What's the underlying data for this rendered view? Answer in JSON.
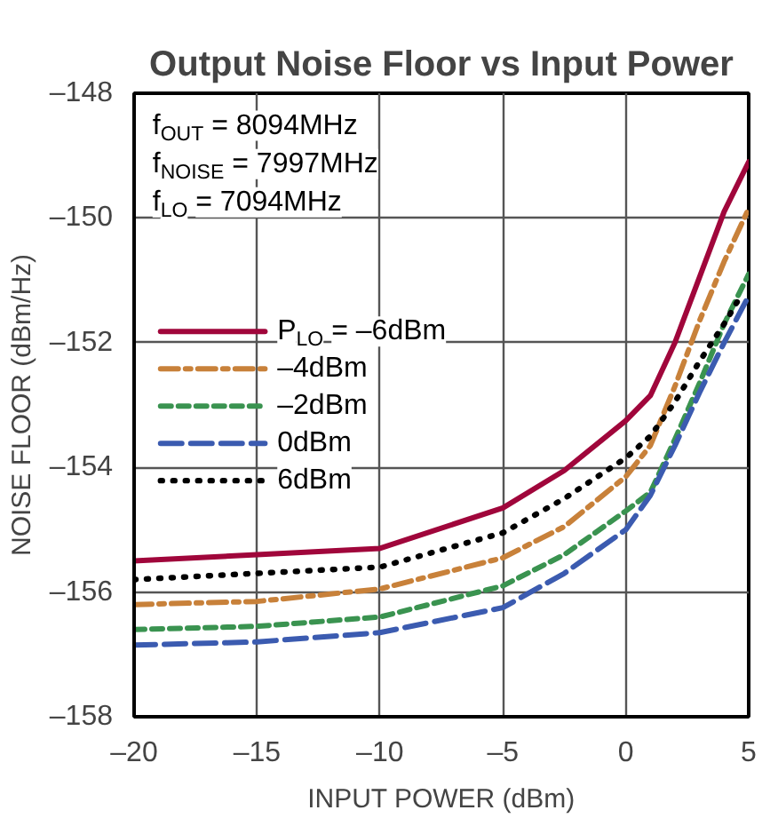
{
  "chart_data": {
    "type": "line",
    "title": "Output Noise Floor vs Input Power",
    "xlabel": "INPUT POWER (dBm)",
    "ylabel": "NOISE FLOOR (dBm/Hz)",
    "annotations": [
      "f$_{OUT}$ = 8094MHz",
      "f$_{NOISE}$ = 7997MHz",
      "f$_{LO}$ = 7094MHz"
    ],
    "x": [
      -20,
      -15,
      -10,
      -5,
      -2.5,
      0,
      1,
      2,
      3,
      4,
      5
    ],
    "series": [
      {
        "name": "P$_{LO}$ = –6dBm",
        "color": "#a0063b",
        "line_style": "solid",
        "values": [
          -155.5,
          -155.4,
          -155.3,
          -154.65,
          -154.05,
          -153.25,
          -152.85,
          -152.0,
          -150.95,
          -149.9,
          -149.1
        ]
      },
      {
        "name": "–4dBm",
        "color": "#c8813a",
        "line_style": "dashdot",
        "values": [
          -156.2,
          -156.15,
          -155.95,
          -155.45,
          -154.95,
          -154.15,
          -153.65,
          -152.7,
          -151.65,
          -150.7,
          -149.85
        ]
      },
      {
        "name": "–2dBm",
        "color": "#3a9350",
        "line_style": "dashed",
        "values": [
          -156.6,
          -156.55,
          -156.4,
          -155.9,
          -155.4,
          -154.7,
          -154.4,
          -153.55,
          -152.65,
          -151.7,
          -150.9
        ]
      },
      {
        "name": "0dBm",
        "color": "#3b5bb0",
        "line_style": "longdash",
        "values": [
          -156.85,
          -156.8,
          -156.65,
          -156.25,
          -155.7,
          -155.0,
          -154.45,
          -153.65,
          -152.8,
          -152.0,
          -151.25
        ]
      },
      {
        "name": "6dBm",
        "color": "#000000",
        "line_style": "dotted",
        "x": [
          -20,
          -15,
          -10,
          -5,
          -2.5,
          0,
          1,
          2,
          3,
          4,
          4.6
        ],
        "values": [
          -155.8,
          -155.7,
          -155.6,
          -155.05,
          -154.5,
          -153.85,
          -153.5,
          -152.95,
          -152.3,
          -151.7,
          -151.3
        ]
      }
    ],
    "xlim": [
      -20,
      5
    ],
    "ylim": [
      -158,
      -148
    ],
    "xticks": [
      {
        "value": -20,
        "label": "–20"
      },
      {
        "value": -15,
        "label": "–15"
      },
      {
        "value": -10,
        "label": "–10"
      },
      {
        "value": -5,
        "label": "–5"
      },
      0,
      5
    ],
    "yticks": [
      {
        "value": -158,
        "label": "–158"
      },
      {
        "value": -156,
        "label": "–156"
      },
      {
        "value": -154,
        "label": "–154"
      },
      {
        "value": -152,
        "label": "–152"
      },
      {
        "value": -150,
        "label": "–150"
      },
      {
        "value": -148,
        "label": "–148"
      }
    ],
    "grid": true,
    "legend": "left"
  }
}
